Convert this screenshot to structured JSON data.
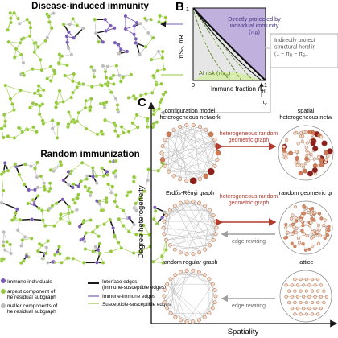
{
  "colors": {
    "immune": "#7a5bb5",
    "susceptible": "#95c93d",
    "gray_node": "#bdbdbd",
    "interface_edge": "#1a1a1a",
    "purple_fill": "#bfb0de",
    "green_fill": "#d9ecaf",
    "gray_fill": "#e6e6e6",
    "red": "#b23a2e",
    "dark_red": "#8c1e1e",
    "arrow_gray": "#9e9e9e"
  },
  "panel_a": {
    "title_top": "Disease-induced immunity",
    "title_bottom": "Random immunization",
    "legend": {
      "immune": "Immune individuals",
      "largest": "argest component of\nhe residual subgraph",
      "smaller": "maller components of\nhe residual subgraph",
      "interface": "Interface edges\n(immune-susceptible edges)",
      "immune_edges": "Immune-immune edges",
      "suscept_edges": "Susceptible-susceptible edges"
    }
  },
  "panel_b": {
    "letter": "B",
    "ylabel": "πSₙ, πR",
    "xlabel": "Immune fraction π",
    "xlabel_sub": "R",
    "y_tick_top": "1",
    "x_tick_0": "0",
    "x_tick_1": "1",
    "pi_c": "π",
    "pi_c_sub": "c",
    "direct": "Directly protected by\nindividual immunity\n(π",
    "direct_tail": ")",
    "indirect": "Indirectly protect\nstructural herd in\n(1 − π",
    "indirect_tail": " − π",
    "at_risk": "At risk (π",
    "at_risk_tail": ")"
  },
  "panel_c": {
    "letter": "C",
    "ylabel": "Degree heterogeneity",
    "xlabel": "Spatiality",
    "cells": {
      "config": "configuration model\nheterogeneous network",
      "spatial_het": "spatial\nheterogeneous netw",
      "er": "Erdős-Rényi graph",
      "rgg": "random geometric gr",
      "rrg": "random regular graph",
      "lattice": "lattice"
    },
    "arrow_het": "heterogeneous random\ngeometric graph",
    "arrow_rewire": "edge rewiring"
  }
}
